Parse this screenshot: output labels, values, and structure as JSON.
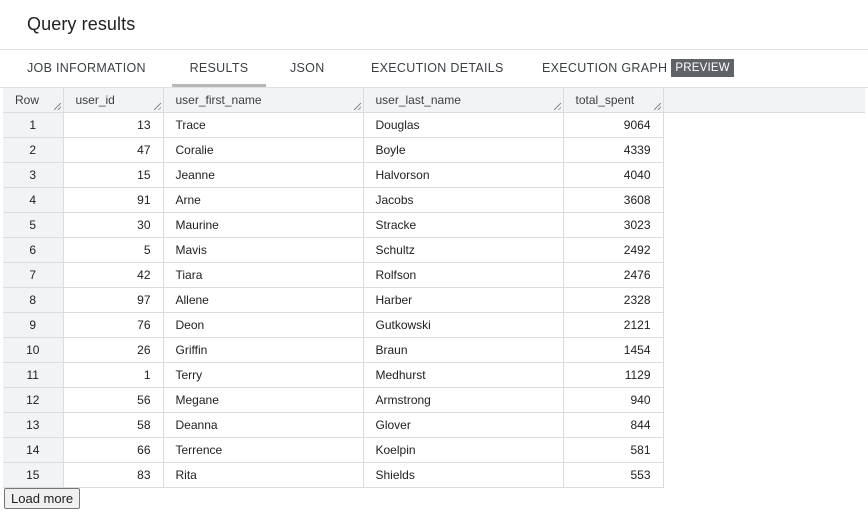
{
  "header": {
    "title": "Query results"
  },
  "tabs": [
    {
      "label": "JOB INFORMATION"
    },
    {
      "label": "RESULTS"
    },
    {
      "label": "JSON"
    },
    {
      "label": "EXECUTION DETAILS"
    },
    {
      "label": "EXECUTION GRAPH",
      "badge": "PREVIEW"
    }
  ],
  "active_tab": "RESULTS",
  "table": {
    "columns": [
      "Row",
      "user_id",
      "user_first_name",
      "user_last_name",
      "total_spent"
    ],
    "rows": [
      [
        "1",
        "13",
        "Trace",
        "Douglas",
        "9064"
      ],
      [
        "2",
        "47",
        "Coralie",
        "Boyle",
        "4339"
      ],
      [
        "3",
        "15",
        "Jeanne",
        "Halvorson",
        "4040"
      ],
      [
        "4",
        "91",
        "Arne",
        "Jacobs",
        "3608"
      ],
      [
        "5",
        "30",
        "Maurine",
        "Stracke",
        "3023"
      ],
      [
        "6",
        "5",
        "Mavis",
        "Schultz",
        "2492"
      ],
      [
        "7",
        "42",
        "Tiara",
        "Rolfson",
        "2476"
      ],
      [
        "8",
        "97",
        "Allene",
        "Harber",
        "2328"
      ],
      [
        "9",
        "76",
        "Deon",
        "Gutkowski",
        "2121"
      ],
      [
        "10",
        "26",
        "Griffin",
        "Braun",
        "1454"
      ],
      [
        "11",
        "1",
        "Terry",
        "Medhurst",
        "1129"
      ],
      [
        "12",
        "56",
        "Megane",
        "Armstrong",
        "940"
      ],
      [
        "13",
        "58",
        "Deanna",
        "Glover",
        "844"
      ],
      [
        "14",
        "66",
        "Terrence",
        "Koelpin",
        "581"
      ],
      [
        "15",
        "83",
        "Rita",
        "Shields",
        "553"
      ]
    ]
  },
  "load_more_label": "Load more"
}
